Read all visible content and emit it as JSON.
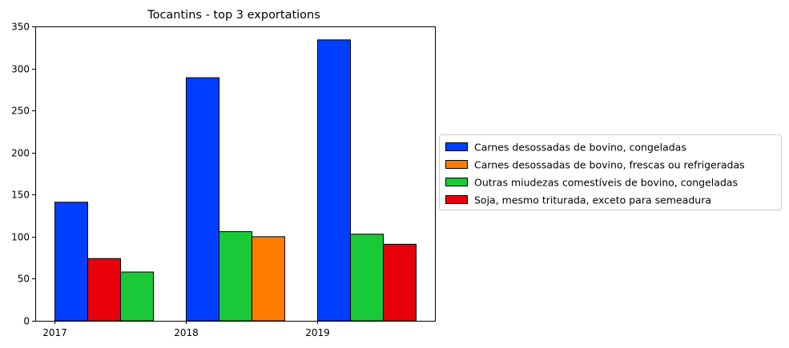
{
  "chart_data": {
    "type": "bar",
    "title": "Tocantins - top 3 exportations",
    "xlabel": "",
    "ylabel": "",
    "ylim": [
      0,
      350
    ],
    "yticks": [
      0,
      50,
      100,
      150,
      200,
      250,
      300,
      350
    ],
    "categories": [
      "2017",
      "2018",
      "2019"
    ],
    "grid": false,
    "legend_position": "right",
    "bars": [
      {
        "category": "2017",
        "series": "Carnes desossadas de bovino, congeladas",
        "value": 141
      },
      {
        "category": "2017",
        "series": "Soja, mesmo triturada, exceto para semeadura",
        "value": 74
      },
      {
        "category": "2017",
        "series": "Outras miudezas comestíveis de bovino, congeladas",
        "value": 58
      },
      {
        "category": "2018",
        "series": "Carnes desossadas de bovino, congeladas",
        "value": 289
      },
      {
        "category": "2018",
        "series": "Outras miudezas comestíveis de bovino, congeladas",
        "value": 106
      },
      {
        "category": "2018",
        "series": "Carnes desossadas de bovino, frescas ou refrigeradas",
        "value": 100
      },
      {
        "category": "2019",
        "series": "Carnes desossadas de bovino, congeladas",
        "value": 334
      },
      {
        "category": "2019",
        "series": "Outras miudezas comestíveis de bovino, congeladas",
        "value": 103
      },
      {
        "category": "2019",
        "series": "Soja, mesmo triturada, exceto para semeadura",
        "value": 91
      }
    ],
    "series": [
      {
        "name": "Carnes desossadas de bovino, congeladas",
        "color": "#023EFF"
      },
      {
        "name": "Carnes desossadas de bovino, frescas ou refrigeradas",
        "color": "#FF7C00"
      },
      {
        "name": "Outras miudezas comestíveis de bovino, congeladas",
        "color": "#1AC938"
      },
      {
        "name": "Soja, mesmo triturada, exceto para semeadura",
        "color": "#E8000B"
      }
    ]
  }
}
